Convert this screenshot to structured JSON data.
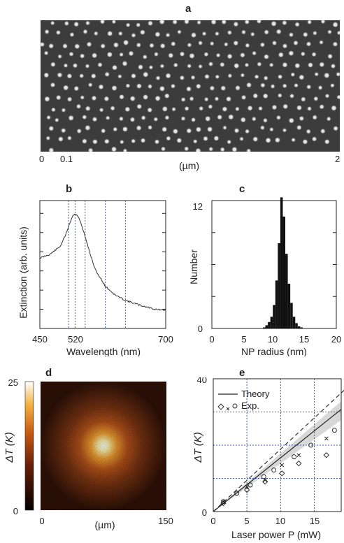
{
  "panels": {
    "a": {
      "letter": "a",
      "ticks": [
        "0",
        "0.1",
        "2"
      ],
      "unit_label": "(µm)"
    },
    "b": {
      "letter": "b",
      "ylabel": "Extinction (arb. units)",
      "xlabel": "Wavelength (nm)",
      "xticks": [
        "450",
        "520",
        "700"
      ]
    },
    "c": {
      "letter": "c",
      "ylabel": "Number",
      "xlabel": "NP radius (nm)",
      "xticks": [
        "0",
        "5",
        "10",
        "15",
        "20"
      ],
      "yticks": [
        "0",
        "12"
      ]
    },
    "d": {
      "letter": "d",
      "colorbar_label": "ΔT (K)",
      "colorbar_ticks": [
        "25",
        "0"
      ],
      "xticks": [
        "0",
        "150"
      ],
      "unit_label": "(µm)"
    },
    "e": {
      "letter": "e",
      "ylabel": "ΔT (K)",
      "xlabel": "Laser power P (mW)",
      "xticks": [
        "0",
        "5",
        "10",
        "15"
      ],
      "yticks": [
        "0",
        "40"
      ],
      "legend": [
        "Theory",
        "Exp."
      ]
    }
  },
  "chart_data": [
    {
      "type": "line",
      "panel": "b",
      "xlabel": "Wavelength (nm)",
      "ylabel": "Extinction (arb. units)",
      "xlim": [
        450,
        700
      ],
      "dashed_verticals": [
        507,
        520,
        540,
        580,
        620
      ],
      "x": [
        450,
        470,
        490,
        500,
        510,
        515,
        520,
        525,
        530,
        540,
        550,
        560,
        580,
        600,
        620,
        650,
        680,
        700
      ],
      "y": [
        0.55,
        0.58,
        0.64,
        0.72,
        0.83,
        0.88,
        0.9,
        0.88,
        0.84,
        0.72,
        0.58,
        0.46,
        0.33,
        0.26,
        0.22,
        0.18,
        0.15,
        0.14
      ]
    },
    {
      "type": "bar",
      "panel": "c",
      "xlabel": "NP radius (nm)",
      "ylabel": "Number",
      "xlim": [
        0,
        20
      ],
      "ylim": [
        0,
        12
      ],
      "x": [
        8.4,
        8.8,
        9.2,
        9.6,
        10.0,
        10.4,
        10.8,
        11.2,
        11.6,
        12.0,
        12.4,
        12.8,
        13.2,
        13.6,
        14.0,
        14.4
      ],
      "values": [
        0.1,
        0.3,
        0.6,
        1.1,
        2.2,
        4.5,
        8.0,
        12.3,
        10.5,
        7.0,
        4.2,
        2.4,
        1.1,
        0.5,
        0.2,
        0.1
      ]
    },
    {
      "type": "scatter",
      "panel": "e",
      "xlabel": "Laser power P (mW)",
      "ylabel": "ΔT (K)",
      "xlim": [
        0,
        19
      ],
      "ylim": [
        0,
        40
      ],
      "theory_slope": 1.62,
      "band_slopes": [
        1.45,
        1.75
      ],
      "dashed_slope": 1.88,
      "series": [
        {
          "marker": "diamond",
          "x": [
            1.5,
            5.0,
            7.7,
            10.2,
            12.7,
            16.8
          ],
          "y": [
            2.5,
            6.5,
            9.0,
            11.5,
            14.5,
            17.0
          ]
        },
        {
          "marker": "cross",
          "x": [
            1.5,
            5.0,
            7.7,
            10.2,
            12.7,
            16.8
          ],
          "y": [
            3.0,
            7.5,
            9.5,
            14.0,
            17.0,
            22.0
          ]
        },
        {
          "marker": "circle",
          "x": [
            1.5,
            3.5,
            5.5,
            7.5,
            9.0,
            12.0,
            14.5,
            18.0
          ],
          "y": [
            3.0,
            5.5,
            8.0,
            10.5,
            12.5,
            16.5,
            20.0,
            24.5
          ]
        }
      ]
    }
  ]
}
